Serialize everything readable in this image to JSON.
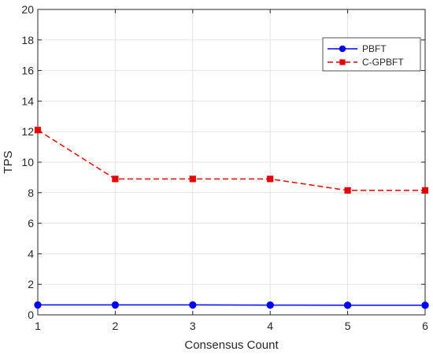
{
  "chart_data": {
    "type": "line",
    "xlabel": "Consensus Count",
    "ylabel": "TPS",
    "x": [
      1,
      2,
      3,
      4,
      5,
      6
    ],
    "xlim": [
      1,
      6
    ],
    "ylim": [
      0,
      20
    ],
    "xticks": [
      "1",
      "2",
      "3",
      "4",
      "5",
      "6"
    ],
    "yticks": [
      "0",
      "2",
      "4",
      "6",
      "8",
      "10",
      "12",
      "14",
      "16",
      "18",
      "20"
    ],
    "grid": true,
    "legend_position": "top-right",
    "series": [
      {
        "name": "PBFT",
        "values": [
          0.65,
          0.65,
          0.65,
          0.64,
          0.63,
          0.63
        ],
        "color": "#0000ff",
        "line": "solid",
        "marker": "circle"
      },
      {
        "name": "C-GPBFT",
        "values": [
          12.1,
          8.9,
          8.9,
          8.9,
          8.15,
          8.15
        ],
        "color": "#e60000",
        "line": "dashed",
        "marker": "square"
      }
    ]
  }
}
